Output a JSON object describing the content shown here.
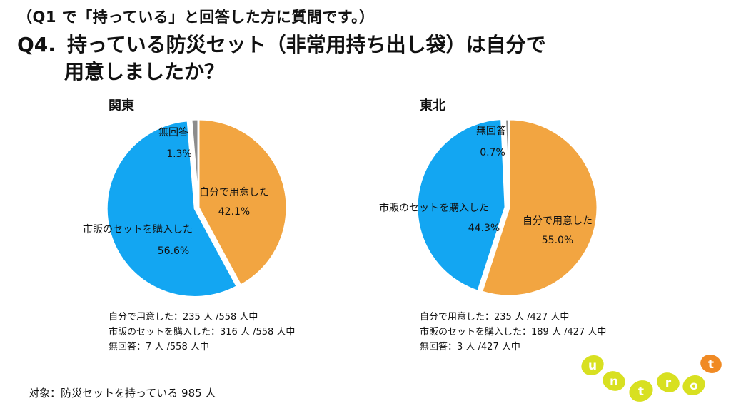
{
  "header": {
    "subtitle": "（Q1 で「持っている」と回答した方に質問です。）",
    "question_number": "Q4.",
    "question_line1": "持っている防災セット（非常用持ち出し袋）は自分で",
    "question_line2": "用意しましたか？"
  },
  "colors": {
    "self_prepared": "#F2A541",
    "bought_set": "#13A6F2",
    "no_answer": "#8C8C8C",
    "logo_yellow": "#D8E021",
    "logo_orange": "#F08A24"
  },
  "chart_data": [
    {
      "type": "pie",
      "title": "関東",
      "slices": [
        {
          "label": "自分で用意した",
          "value": 42.1,
          "value_label": "42.1%",
          "color": "#F2A541"
        },
        {
          "label": "市販のセットを購入した",
          "value": 56.6,
          "value_label": "56.6%",
          "color": "#13A6F2"
        },
        {
          "label": "無回答",
          "value": 1.3,
          "value_label": "1.3%",
          "color": "#8C8C8C"
        }
      ],
      "counts": [
        "自分で用意した：235 人 /558 人中",
        "市販のセットを購入した：316 人 /558 人中",
        "無回答：7 人 /558 人中"
      ]
    },
    {
      "type": "pie",
      "title": "東北",
      "slices": [
        {
          "label": "自分で用意した",
          "value": 55.0,
          "value_label": "55.0%",
          "color": "#F2A541"
        },
        {
          "label": "市販のセットを購入した",
          "value": 44.3,
          "value_label": "44.3%",
          "color": "#13A6F2"
        },
        {
          "label": "無回答",
          "value": 0.7,
          "value_label": "0.7%",
          "color": "#8C8C8C"
        }
      ],
      "counts": [
        "自分で用意した：235 人 /427 人中",
        "市販のセットを購入した：189 人 /427 人中",
        "無回答：3 人 /427 人中"
      ]
    }
  ],
  "footer": {
    "target": "対象：防災セットを持っている 985 人"
  },
  "logo": {
    "letters": [
      "u",
      "n",
      "t",
      "r",
      "o",
      "t"
    ]
  }
}
